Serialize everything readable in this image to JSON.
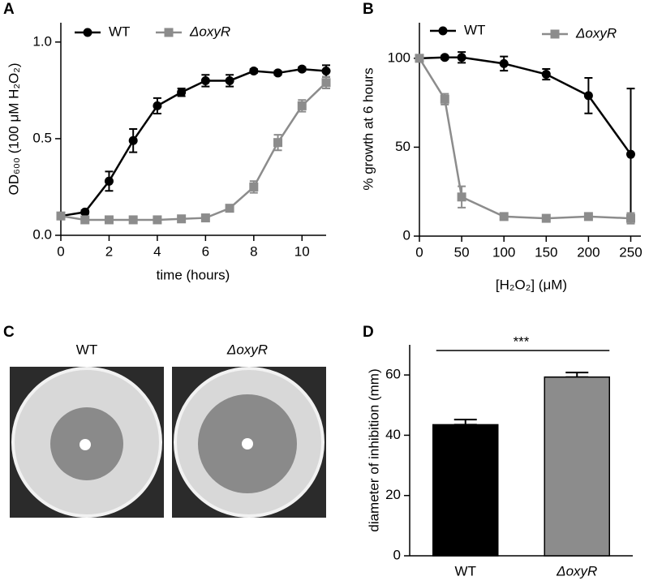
{
  "chart_data": [
    {
      "panel": "A",
      "type": "line",
      "x_label": "time (hours)",
      "y_label": "OD₆₀₀ (100 μM H₂O₂)",
      "x": [
        0,
        1,
        2,
        3,
        4,
        5,
        6,
        7,
        8,
        9,
        10,
        11
      ],
      "xlim": [
        0,
        11
      ],
      "xticks": [
        0,
        2,
        4,
        6,
        8,
        10
      ],
      "ylim": [
        0,
        1.1
      ],
      "yticks": [
        {
          "value": 0,
          "label": "0.0"
        },
        0.5,
        {
          "value": 1,
          "label": "1.0"
        }
      ],
      "legend": "top",
      "series": [
        {
          "name": "WT",
          "color": "#000000",
          "marker": "circle",
          "values": [
            0.1,
            0.12,
            0.28,
            0.49,
            0.67,
            0.74,
            0.8,
            0.8,
            0.85,
            0.84,
            0.86,
            0.85
          ],
          "errors": [
            0.01,
            0.01,
            0.05,
            0.06,
            0.04,
            0.02,
            0.03,
            0.03,
            0.01,
            0.01,
            0.01,
            0.03
          ]
        },
        {
          "name": "ΔoxyR",
          "color": "#8c8c8c",
          "marker": "square",
          "values": [
            0.1,
            0.08,
            0.08,
            0.08,
            0.08,
            0.085,
            0.09,
            0.14,
            0.25,
            0.48,
            0.67,
            0.79
          ],
          "errors": [
            0.01,
            0.01,
            0.01,
            0.01,
            0.01,
            0.01,
            0.01,
            0.01,
            0.03,
            0.04,
            0.03,
            0.03
          ]
        }
      ]
    },
    {
      "panel": "B",
      "type": "line",
      "x_label": "[H₂O₂] (μM)",
      "y_label": "% growth at 6 hours",
      "x": [
        0,
        30,
        50,
        100,
        150,
        200,
        250
      ],
      "xlim": [
        0,
        262
      ],
      "xticks": [
        0,
        50,
        100,
        150,
        200,
        250
      ],
      "ylim": [
        0,
        120
      ],
      "yticks": [
        0,
        50,
        100
      ],
      "legend": "top",
      "series": [
        {
          "name": "WT",
          "color": "#000000",
          "marker": "circle",
          "values": [
            100,
            100.5,
            100.5,
            97,
            91,
            79,
            46
          ],
          "errors": [
            1,
            1,
            3,
            4,
            3,
            10,
            37
          ]
        },
        {
          "name": "ΔoxyR",
          "color": "#8c8c8c",
          "marker": "square",
          "values": [
            100,
            77,
            22,
            11,
            10,
            11,
            10
          ],
          "errors": [
            1,
            3,
            6,
            1,
            1,
            1,
            3
          ]
        }
      ]
    },
    {
      "panel": "C",
      "type": "image",
      "labels": [
        "WT",
        "ΔoxyR"
      ]
    },
    {
      "panel": "D",
      "type": "bar",
      "y_label": "diameter of inhibition (mm)",
      "categories": [
        "WT",
        "ΔoxyR"
      ],
      "values": [
        43.5,
        59.3
      ],
      "errors": [
        1.7,
        1.5
      ],
      "colors": [
        "#000000",
        "#8c8c8c"
      ],
      "ylim": [
        0,
        70
      ],
      "yticks": [
        0,
        20,
        40,
        60
      ],
      "annotation": "***"
    }
  ]
}
